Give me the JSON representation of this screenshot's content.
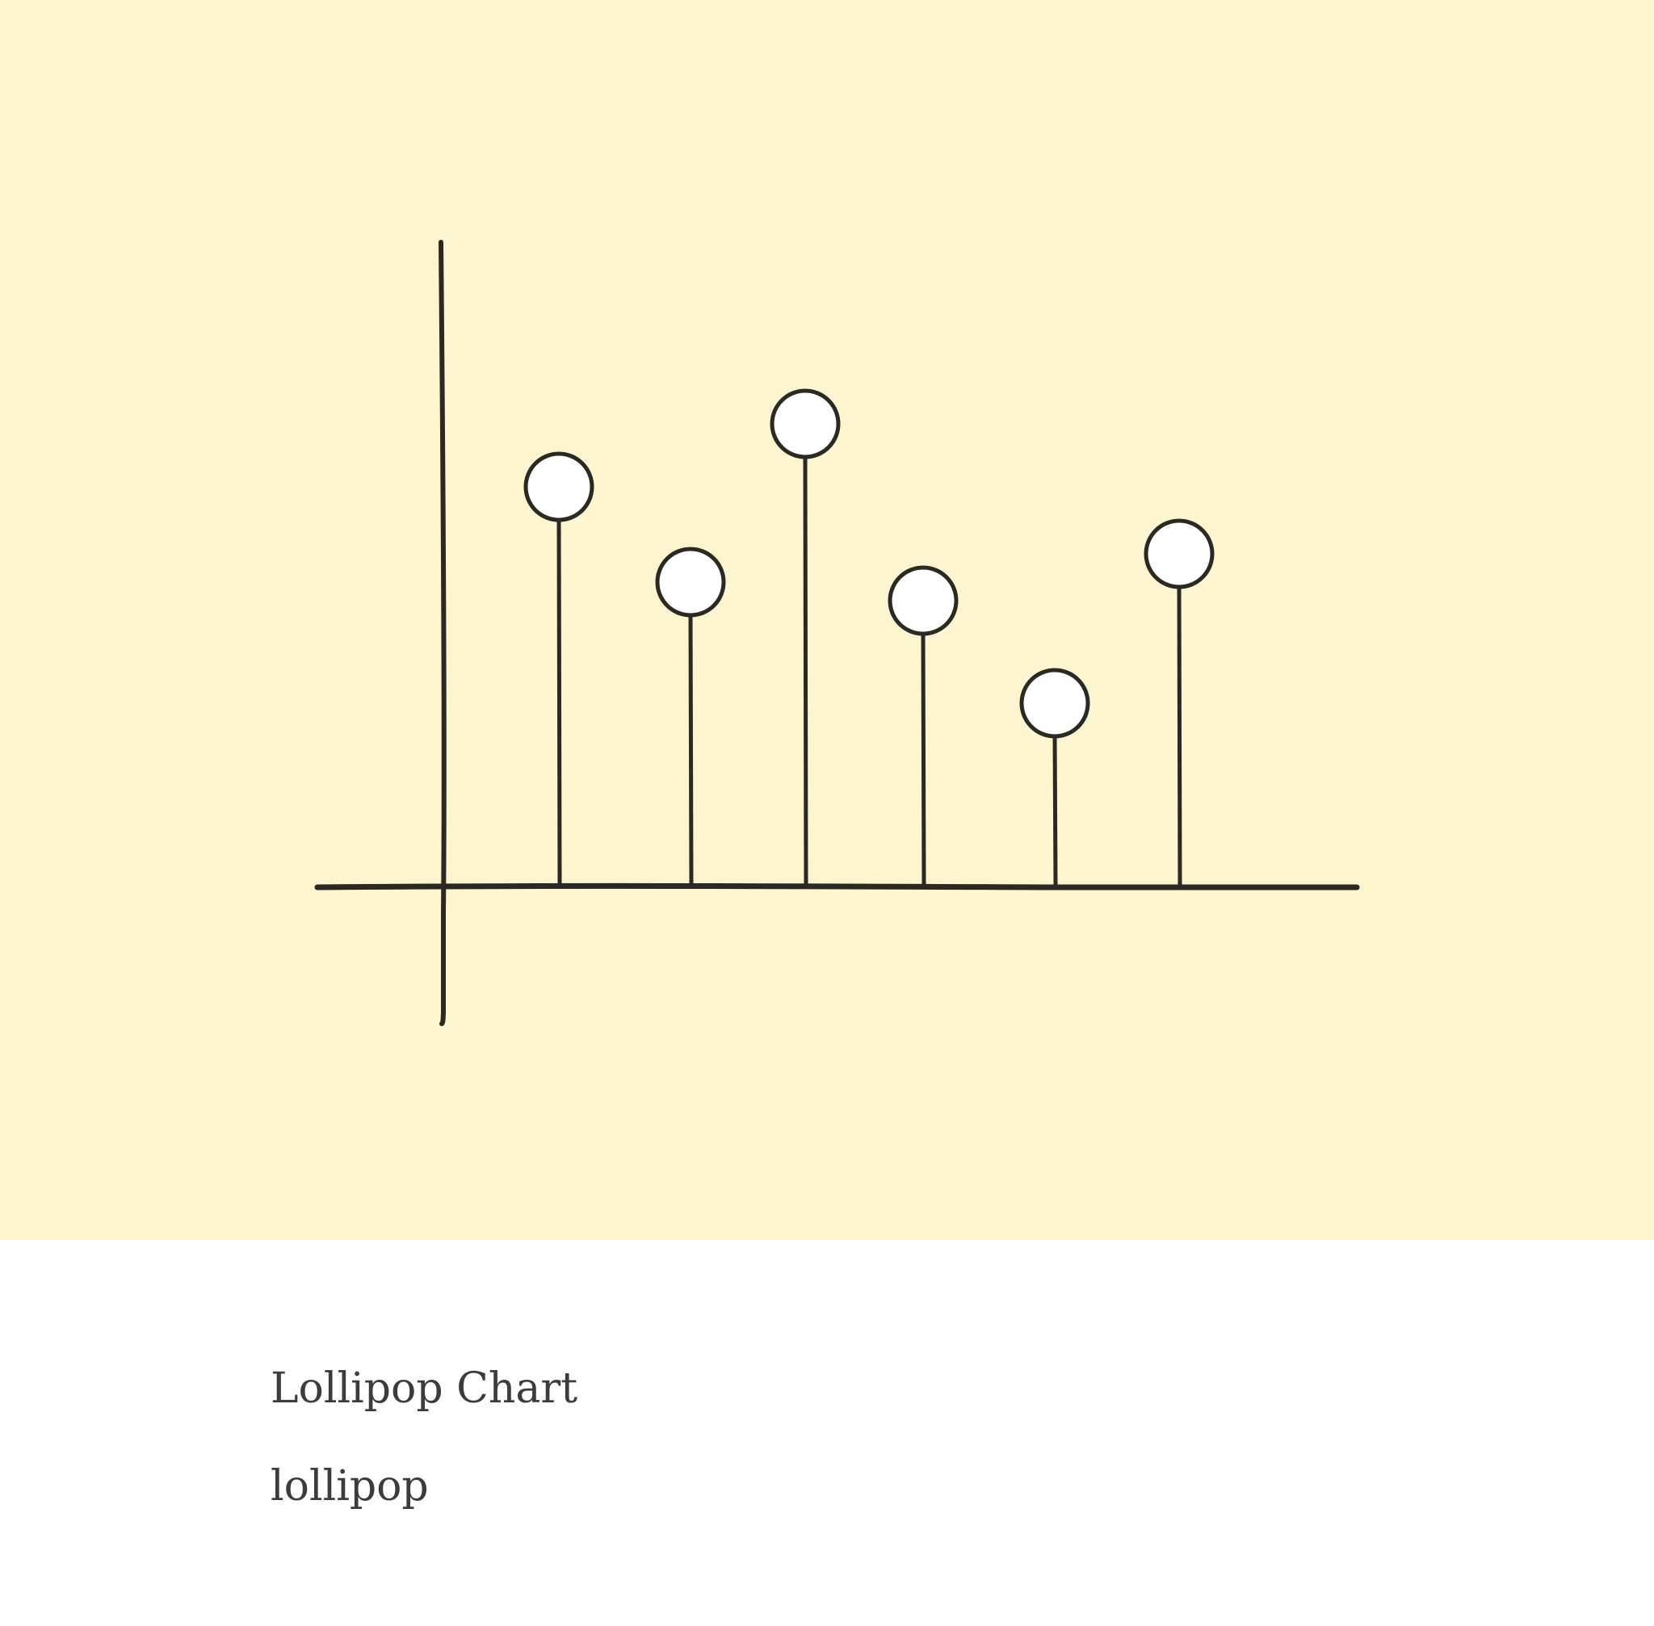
{
  "card": {
    "title": "Lollipop Chart",
    "tag": "lollipop"
  },
  "illustration": {
    "type": "lollipop",
    "lollipop_count": 6,
    "colors": {
      "background": "#fdf5cf",
      "stroke": "#2a2923",
      "head_fill": "#ffffff",
      "card": "#ffffff",
      "text": "#3c3c3c"
    }
  }
}
